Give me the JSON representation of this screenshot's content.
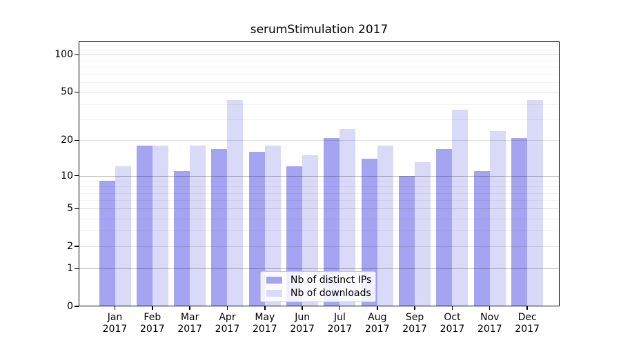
{
  "chart_data": {
    "type": "bar",
    "title": "serumStimulation 2017",
    "categories": [
      {
        "month": "Jan",
        "year": "2017"
      },
      {
        "month": "Feb",
        "year": "2017"
      },
      {
        "month": "Mar",
        "year": "2017"
      },
      {
        "month": "Apr",
        "year": "2017"
      },
      {
        "month": "May",
        "year": "2017"
      },
      {
        "month": "Jun",
        "year": "2017"
      },
      {
        "month": "Jul",
        "year": "2017"
      },
      {
        "month": "Aug",
        "year": "2017"
      },
      {
        "month": "Sep",
        "year": "2017"
      },
      {
        "month": "Oct",
        "year": "2017"
      },
      {
        "month": "Nov",
        "year": "2017"
      },
      {
        "month": "Dec",
        "year": "2017"
      }
    ],
    "series": [
      {
        "name": "Nb of distinct IPs",
        "color": "#a4a4f2",
        "values": [
          9,
          18,
          11,
          17,
          16,
          12,
          21,
          14,
          10,
          17,
          11,
          21
        ]
      },
      {
        "name": "Nb of downloads",
        "color": "#d9d9f8",
        "values": [
          12,
          18,
          18,
          43,
          18,
          15,
          25,
          18,
          13,
          36,
          24,
          43
        ]
      }
    ],
    "xlabel": "",
    "ylabel": "",
    "y_axis": {
      "scale": "log10(1+v)",
      "ylim": [
        0,
        128
      ],
      "ticks": [
        {
          "value": 0,
          "label": "0"
        },
        {
          "value": 1,
          "label": "1"
        },
        {
          "value": 2,
          "label": "2"
        },
        {
          "value": 5,
          "label": "5"
        },
        {
          "value": 10,
          "label": "10"
        },
        {
          "value": 20,
          "label": "20"
        },
        {
          "value": 50,
          "label": "50"
        },
        {
          "value": 100,
          "label": "100"
        }
      ],
      "minor_ticks": [
        3,
        4,
        6,
        7,
        8,
        9,
        30,
        40,
        60,
        70,
        80,
        90,
        110,
        120
      ]
    },
    "grid": "on",
    "legend_position": "lower center"
  }
}
